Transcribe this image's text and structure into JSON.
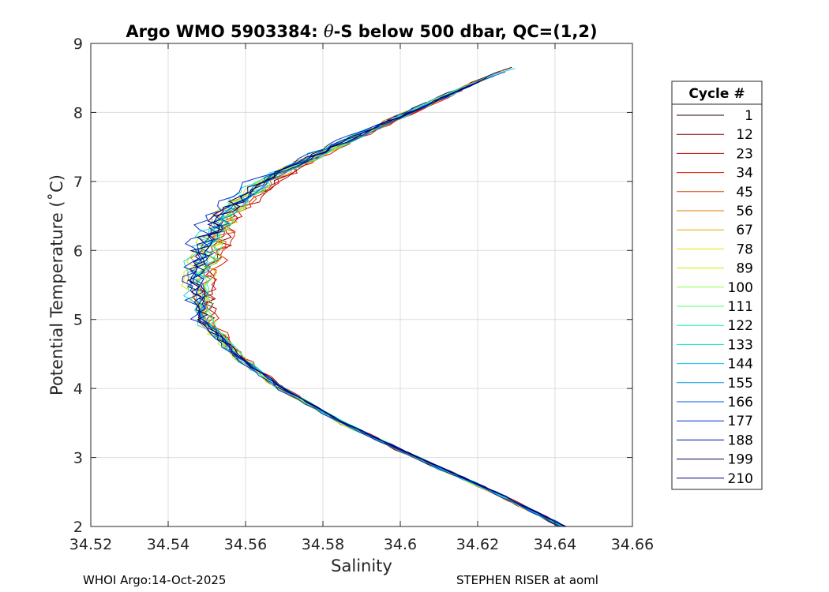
{
  "chart_data": {
    "type": "line",
    "title_prefix": "Argo WMO 5903384: ",
    "title_symbol": "θ",
    "title_suffix": "-S below 500 dbar,  QC=(1,2)",
    "xlabel": "Salinity",
    "ylabel": "Potential Temperature (˚C)",
    "xlim": [
      34.52,
      34.66
    ],
    "ylim": [
      2,
      9
    ],
    "xticks": [
      "34.52",
      "34.54",
      "34.56",
      "34.58",
      "34.6",
      "34.62",
      "34.64",
      "34.66"
    ],
    "yticks": [
      "2",
      "3",
      "4",
      "5",
      "6",
      "7",
      "8",
      "9"
    ],
    "grid": true,
    "legend": {
      "title": "Cycle #",
      "placement": "right-outside",
      "cycles": [
        "1",
        "12",
        "23",
        "34",
        "45",
        "56",
        "67",
        "78",
        "89",
        "100",
        "111",
        "122",
        "133",
        "144",
        "155",
        "166",
        "177",
        "188",
        "199",
        "210"
      ],
      "colors": [
        "#2a0000",
        "#800000",
        "#c00000",
        "#e01000",
        "#e04000",
        "#e07800",
        "#e0a800",
        "#e8e000",
        "#c8f000",
        "#90ff40",
        "#50ff70",
        "#20f0a0",
        "#10e0d0",
        "#10c0f0",
        "#0090e0",
        "#0060e0",
        "#0030d0",
        "#0010a0",
        "#000060",
        "#000080"
      ]
    },
    "mean_profile": {
      "temperature": [
        2.0,
        2.5,
        3.0,
        3.5,
        4.0,
        4.5,
        5.0,
        5.5,
        6.0,
        6.5,
        7.0,
        7.5,
        8.0,
        8.5,
        8.7
      ],
      "salinity": [
        34.642,
        34.624,
        34.604,
        34.585,
        34.569,
        34.557,
        34.549,
        34.547,
        34.549,
        34.554,
        34.564,
        34.582,
        34.602,
        34.622,
        34.632
      ]
    },
    "series_count": 20
  },
  "footer": {
    "left": "WHOI Argo:14-Oct-2025",
    "right": "STEPHEN RISER at aoml"
  }
}
